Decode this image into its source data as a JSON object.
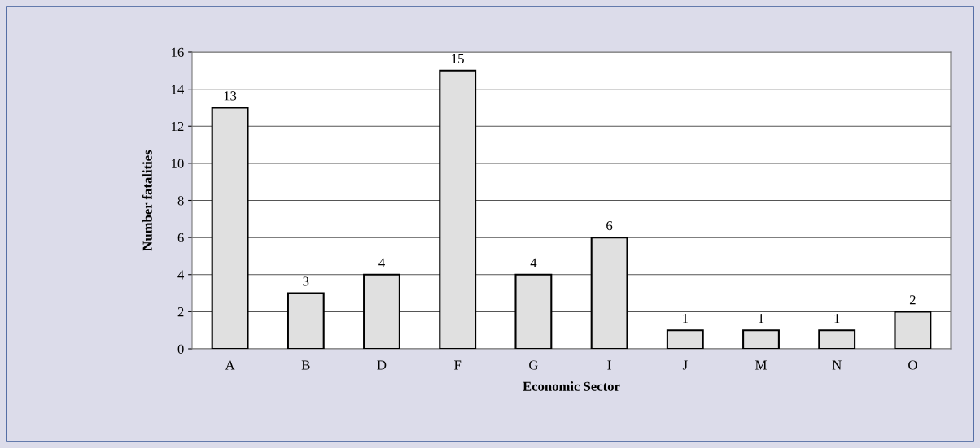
{
  "chart_data": {
    "type": "bar",
    "xlabel": "Economic Sector",
    "ylabel": "Number fatalities",
    "categories": [
      "A",
      "B",
      "D",
      "F",
      "G",
      "I",
      "J",
      "M",
      "N",
      "O"
    ],
    "values": [
      13,
      3,
      4,
      15,
      4,
      6,
      1,
      1,
      1,
      2
    ],
    "color": "#e0e0e0",
    "ylim": [
      0,
      16
    ],
    "yticks": [
      0,
      2,
      4,
      6,
      8,
      10,
      12,
      14,
      16
    ],
    "grid": "y",
    "data_labels": true
  }
}
